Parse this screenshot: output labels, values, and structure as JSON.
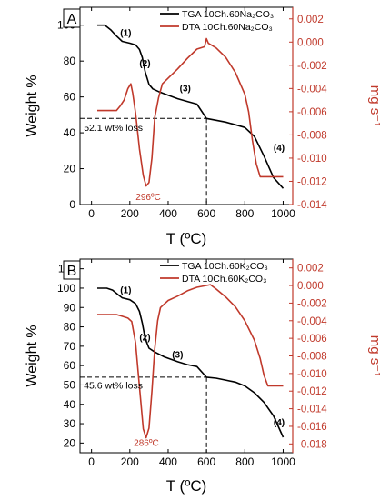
{
  "figure": {
    "background": "#ffffff",
    "tga_color": "#000000",
    "dta_color": "#c0392b"
  },
  "chart_data": [
    {
      "type": "line",
      "panel_label": "A",
      "xlabel": "T (ºC)",
      "ylabel_left": "Weight %",
      "ylabel_right": "mg s⁻¹",
      "xlim": [
        -60,
        1050
      ],
      "xticks": [
        "0",
        "200",
        "400",
        "600",
        "800",
        "1000"
      ],
      "ylim_left": [
        0,
        110
      ],
      "yticks_left": [
        "0",
        "20",
        "40",
        "60",
        "80",
        "100"
      ],
      "ylim_right": [
        -0.014,
        0.003
      ],
      "yticks_right": [
        "-0.014",
        "-0.012",
        "-0.010",
        "-0.008",
        "-0.006",
        "-0.004",
        "-0.002",
        "0.000",
        "0.002"
      ],
      "grid": false,
      "legend_position": "top-right",
      "series": [
        {
          "name": "TGA 10Ch.60Na₂CO₃",
          "axis": "left",
          "x": [
            30,
            70,
            100,
            130,
            160,
            200,
            230,
            250,
            265,
            280,
            300,
            320,
            350,
            400,
            450,
            500,
            550,
            600,
            650,
            700,
            750,
            800,
            850,
            900,
            950,
            1000
          ],
          "y": [
            100,
            100,
            97.5,
            94,
            91,
            90,
            89,
            86.5,
            82,
            74,
            67,
            64.5,
            63,
            61,
            59,
            57.5,
            56,
            48,
            47,
            46,
            44.5,
            43,
            38,
            27,
            15,
            9
          ]
        },
        {
          "name": "DTA 10Ch.60Na₂CO₃",
          "axis": "right",
          "x": [
            30,
            130,
            150,
            170,
            190,
            205,
            215,
            230,
            250,
            270,
            285,
            300,
            315,
            330,
            350,
            370,
            400,
            450,
            500,
            550,
            590,
            600,
            610,
            650,
            700,
            750,
            800,
            820,
            840,
            860,
            880,
            900,
            950,
            1000
          ],
          "y": [
            -0.0059,
            -0.0059,
            -0.0055,
            -0.005,
            -0.004,
            -0.0036,
            -0.0044,
            -0.0061,
            -0.0092,
            -0.0115,
            -0.0124,
            -0.0121,
            -0.01,
            -0.0065,
            -0.0048,
            -0.0036,
            -0.0031,
            -0.0023,
            -0.0014,
            -0.0006,
            -0.0004,
            0.0003,
            -0.0001,
            -0.0005,
            -0.0013,
            -0.0026,
            -0.0045,
            -0.006,
            -0.0085,
            -0.0105,
            -0.0116,
            -0.0116,
            -0.0116,
            -0.0116
          ]
        }
      ],
      "annotations": [
        {
          "text": "(1)",
          "x": 150,
          "y": 94,
          "axis": "left"
        },
        {
          "text": "(2)",
          "x": 250,
          "y": 77,
          "axis": "left"
        },
        {
          "text": "(3)",
          "x": 460,
          "y": 63,
          "axis": "left"
        },
        {
          "text": "(4)",
          "x": 950,
          "y": 30,
          "axis": "left"
        },
        {
          "text": "52.1 wt% loss",
          "x": -40,
          "y": 41,
          "axis": "left"
        },
        {
          "text": "296ºC",
          "x": 296,
          "y": -0.0136,
          "axis": "right"
        }
      ],
      "guides": {
        "loss_level": 48,
        "vertical_at": 600
      }
    },
    {
      "type": "line",
      "panel_label": "B",
      "xlabel": "T (ºC)",
      "ylabel_left": "Weight %",
      "ylabel_right": "mg s⁻¹",
      "xlim": [
        -60,
        1050
      ],
      "xticks": [
        "0",
        "200",
        "400",
        "600",
        "800",
        "1000"
      ],
      "ylim_left": [
        15,
        115
      ],
      "yticks_left": [
        "20",
        "30",
        "40",
        "50",
        "60",
        "70",
        "80",
        "90",
        "100",
        "110"
      ],
      "ylim_right": [
        -0.019,
        0.003
      ],
      "yticks_right": [
        "-0.018",
        "-0.016",
        "-0.014",
        "-0.012",
        "-0.010",
        "-0.008",
        "-0.006",
        "-0.004",
        "-0.002",
        "0.000",
        "0.002"
      ],
      "grid": false,
      "legend_position": "top-right",
      "series": [
        {
          "name": "TGA 10Ch.60K₂CO₃",
          "axis": "left",
          "x": [
            30,
            80,
            110,
            140,
            160,
            200,
            230,
            250,
            265,
            280,
            300,
            330,
            380,
            450,
            500,
            550,
            600,
            650,
            700,
            750,
            800,
            850,
            900,
            950,
            1000
          ],
          "y": [
            100,
            100,
            99,
            96.5,
            95,
            94,
            92,
            88,
            82,
            74,
            69,
            67,
            64.5,
            62,
            60.5,
            59.5,
            54,
            53.5,
            52.5,
            51.5,
            49.5,
            46,
            41,
            34,
            23
          ]
        },
        {
          "name": "DTA 10Ch.60K₂CO₃",
          "axis": "right",
          "x": [
            30,
            130,
            160,
            190,
            210,
            230,
            250,
            270,
            285,
            300,
            315,
            330,
            345,
            360,
            400,
            450,
            500,
            550,
            600,
            620,
            650,
            700,
            750,
            800,
            850,
            880,
            900,
            920,
            950,
            1000
          ],
          "y": [
            -0.0033,
            -0.0033,
            -0.0035,
            -0.0037,
            -0.0041,
            -0.0065,
            -0.0115,
            -0.0163,
            -0.0173,
            -0.0162,
            -0.012,
            -0.0072,
            -0.004,
            -0.0025,
            -0.0017,
            -0.0012,
            -0.0006,
            -0.0002,
            0.0,
            0.0001,
            -0.0004,
            -0.0013,
            -0.0024,
            -0.004,
            -0.0062,
            -0.0083,
            -0.0102,
            -0.0114,
            -0.0114,
            -0.0114
          ]
        }
      ],
      "annotations": [
        {
          "text": "(1)",
          "x": 150,
          "y": 97.5,
          "axis": "left"
        },
        {
          "text": "(2)",
          "x": 250,
          "y": 73,
          "axis": "left"
        },
        {
          "text": "(3)",
          "x": 420,
          "y": 64,
          "axis": "left"
        },
        {
          "text": "(4)",
          "x": 950,
          "y": 29,
          "axis": "left"
        },
        {
          "text": "45.6 wt% loss",
          "x": -40,
          "y": 48,
          "axis": "left"
        },
        {
          "text": "286ºC",
          "x": 286,
          "y": -0.0182,
          "axis": "right"
        }
      ],
      "guides": {
        "loss_level": 54,
        "vertical_at": 600
      }
    }
  ]
}
